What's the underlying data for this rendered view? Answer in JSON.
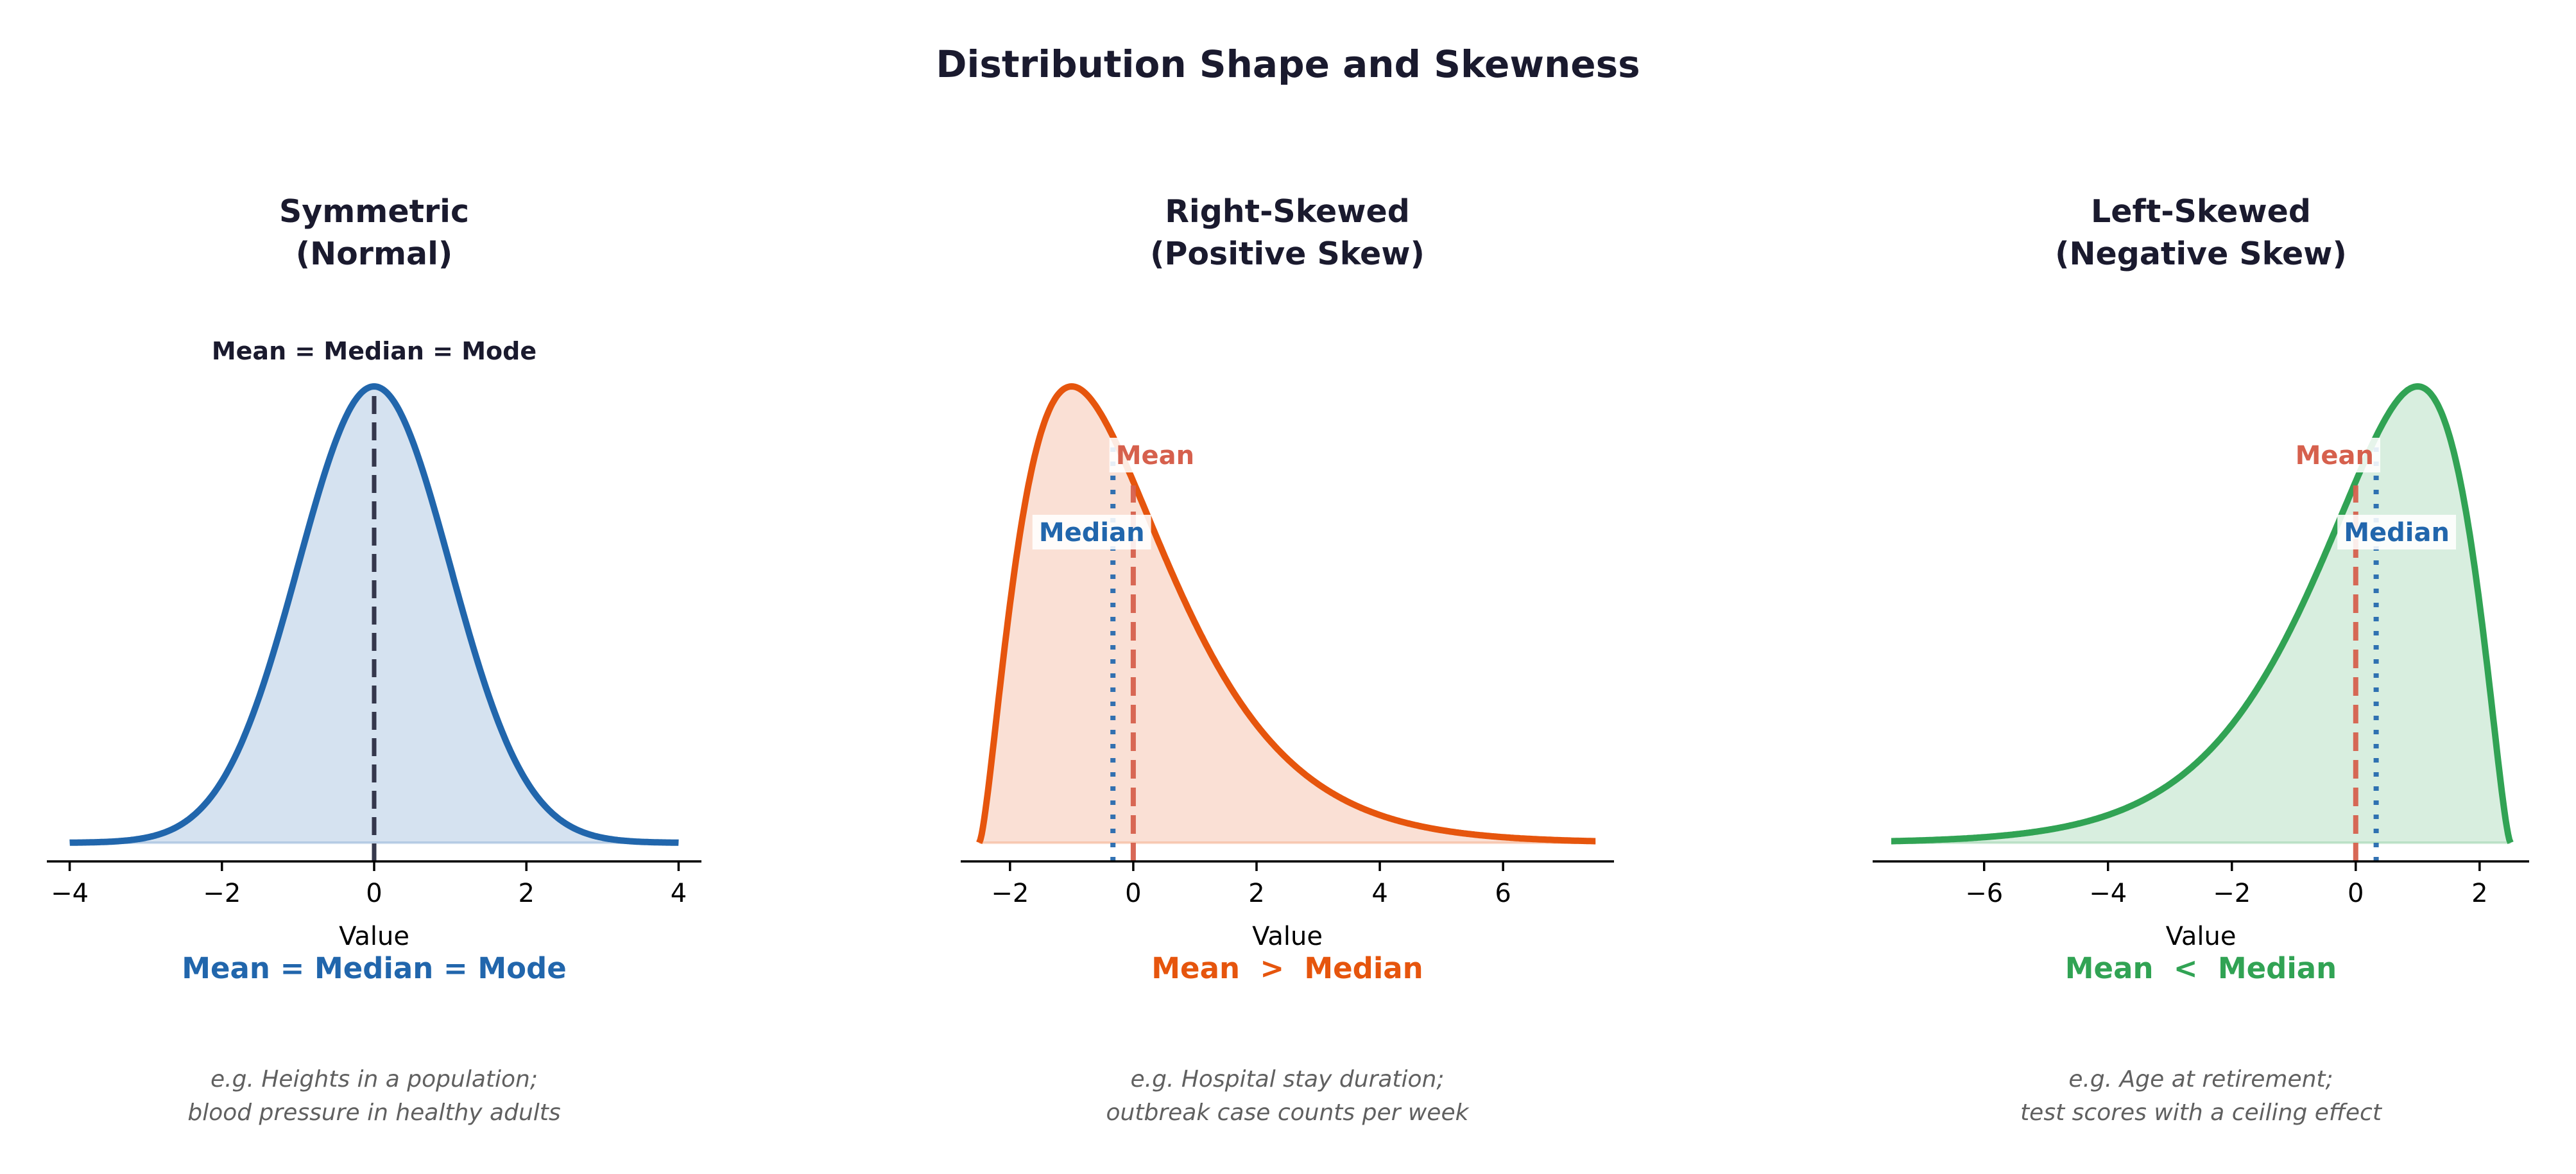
{
  "figure": {
    "title": "Distribution Shape and Skewness"
  },
  "chart_data": [
    {
      "type": "area",
      "title_lines": [
        "Symmetric",
        "(Normal)"
      ],
      "xlabel": "Value",
      "ylabel": "",
      "xlim": [
        -4.3,
        4.3
      ],
      "xticks": [
        -4,
        -2,
        0,
        2,
        4
      ],
      "xtick_labels": [
        "−4",
        "−2",
        "0",
        "2",
        "4"
      ],
      "grid": false,
      "legend": "none",
      "x_range": [
        -4,
        4
      ],
      "distribution": {
        "family": "normal",
        "mean": 0,
        "sd": 1,
        "reflected": false
      },
      "mean": 0,
      "median": 0,
      "mode": 0,
      "color": "#2166ac",
      "fill_color": "#d5e2f0",
      "markers": [
        {
          "label": "Mean = Median = Mode",
          "value": 0,
          "line": "dashed",
          "color": "#2b2d42",
          "label_color": "#1a1a2e"
        }
      ],
      "summary": "Mean = Median = Mode",
      "example_lines": [
        "e.g. Heights in a population;",
        "blood pressure in healthy adults"
      ]
    },
    {
      "type": "area",
      "title_lines": [
        "Right-Skewed",
        "(Positive Skew)"
      ],
      "xlabel": "Value",
      "ylabel": "",
      "xlim": [
        -2.8,
        7.8
      ],
      "xticks": [
        -2,
        0,
        2,
        4,
        6
      ],
      "xtick_labels": [
        "−2",
        "0",
        "2",
        "4",
        "6"
      ],
      "grid": false,
      "legend": "none",
      "x_range": [
        -2.5,
        7.5
      ],
      "distribution": {
        "family": "gamma",
        "shape": 2.5,
        "scale": 1,
        "shift": -2.5,
        "reflected": false
      },
      "mean": 0,
      "median": -0.33,
      "mode": -1.0,
      "color": "#e6550d",
      "fill_color": "#fae0d5",
      "markers": [
        {
          "label": "Mean",
          "value": 0,
          "line": "dashed",
          "color": "#d6604d",
          "label_color": "#d6604d"
        },
        {
          "label": "Median",
          "value": -0.33,
          "line": "dotted",
          "color": "#2166ac",
          "label_color": "#2166ac"
        }
      ],
      "summary": "Mean  >  Median",
      "example_lines": [
        "e.g. Hospital stay duration;",
        "outbreak case counts per week"
      ]
    },
    {
      "type": "area",
      "title_lines": [
        "Left-Skewed",
        "(Negative Skew)"
      ],
      "xlabel": "Value",
      "ylabel": "",
      "xlim": [
        -7.8,
        2.8
      ],
      "xticks": [
        -6,
        -4,
        -2,
        0,
        2
      ],
      "xtick_labels": [
        "−6",
        "−4",
        "−2",
        "0",
        "2"
      ],
      "grid": false,
      "legend": "none",
      "x_range": [
        -7.5,
        2.5
      ],
      "distribution": {
        "family": "gamma",
        "shape": 2.5,
        "scale": 1,
        "shift": -2.5,
        "reflected": true
      },
      "mean": 0,
      "median": 0.33,
      "mode": 1.0,
      "color": "#31a354",
      "fill_color": "#d8eedf",
      "markers": [
        {
          "label": "Mean",
          "value": 0,
          "line": "dashed",
          "color": "#d6604d",
          "label_color": "#d6604d"
        },
        {
          "label": "Median",
          "value": 0.33,
          "line": "dotted",
          "color": "#2166ac",
          "label_color": "#2166ac"
        }
      ],
      "summary": "Mean  <  Median",
      "example_lines": [
        "e.g. Age at retirement;",
        "test scores with a ceiling effect"
      ]
    }
  ]
}
